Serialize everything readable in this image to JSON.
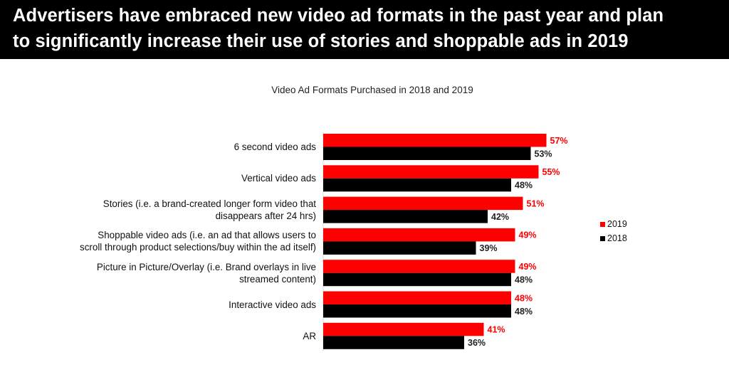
{
  "header": {
    "line1": "Advertisers have embraced new video ad formats in the past year and plan",
    "line2": "to significantly increase their use of stories and shoppable ads in 2019"
  },
  "chart_data": {
    "type": "bar",
    "orientation": "horizontal",
    "title": "Video Ad Formats Purchased in 2018 and 2019",
    "categories": [
      [
        "6 second video ads"
      ],
      [
        "Vertical video ads"
      ],
      [
        "Stories (i.e. a brand-created longer form video that",
        "disappears after 24 hrs)"
      ],
      [
        "Shoppable video ads (i.e. an ad that allows users to",
        "scroll through product selections/buy within the ad itself)"
      ],
      [
        "Picture in Picture/Overlay (i.e. Brand overlays in live",
        "streamed content)"
      ],
      [
        "Interactive video ads"
      ],
      [
        "AR"
      ]
    ],
    "series": [
      {
        "name": "2019",
        "color": "#ff0000",
        "values": [
          57,
          55,
          51,
          49,
          49,
          48,
          41
        ],
        "labels": [
          "57%",
          "55%",
          "51%",
          "49%",
          "49%",
          "48%",
          "41%"
        ]
      },
      {
        "name": "2018",
        "color": "#000000",
        "values": [
          53,
          48,
          42,
          39,
          48,
          48,
          36
        ],
        "labels": [
          "53%",
          "48%",
          "42%",
          "39%",
          "48%",
          "48%",
          "36%"
        ]
      }
    ],
    "legend_position": "right",
    "grid": false,
    "xlim": [
      0,
      100
    ]
  }
}
